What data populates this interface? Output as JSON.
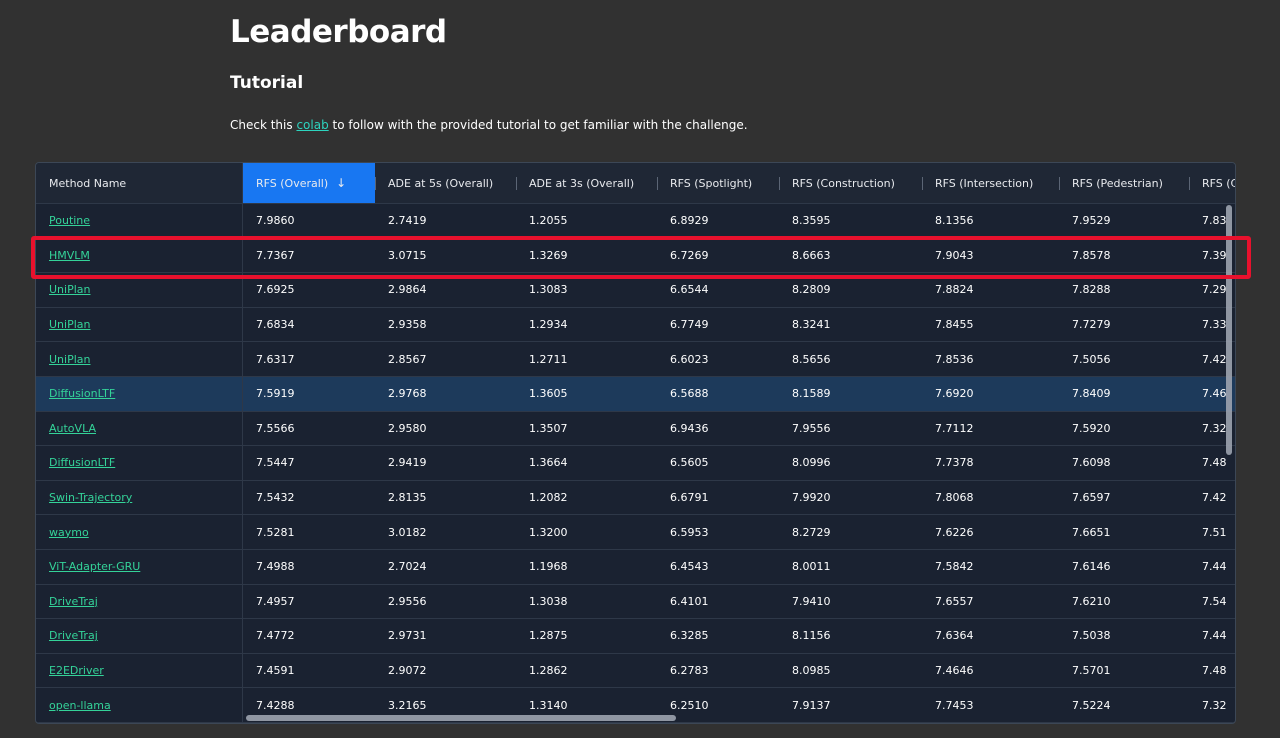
{
  "page": {
    "title": "Leaderboard",
    "subtitle": "Tutorial",
    "intro_before": "Check this ",
    "intro_link": "colab",
    "intro_after": " to follow with the provided tutorial to get familiar with the challenge."
  },
  "table": {
    "columns": [
      "Method Name",
      "RFS (Overall)",
      "ADE at 5s (Overall)",
      "ADE at 3s (Overall)",
      "RFS (Spotlight)",
      "RFS (Construction)",
      "RFS (Intersection)",
      "RFS (Pedestrian)",
      "RFS (C"
    ],
    "sort_indicator": "↓",
    "rows": [
      [
        "Poutine",
        "7.9860",
        "2.7419",
        "1.2055",
        "6.8929",
        "8.3595",
        "8.1356",
        "7.9529",
        "7.83"
      ],
      [
        "HMVLM",
        "7.7367",
        "3.0715",
        "1.3269",
        "6.7269",
        "8.6663",
        "7.9043",
        "7.8578",
        "7.39"
      ],
      [
        "UniPlan",
        "7.6925",
        "2.9864",
        "1.3083",
        "6.6544",
        "8.2809",
        "7.8824",
        "7.8288",
        "7.29"
      ],
      [
        "UniPlan",
        "7.6834",
        "2.9358",
        "1.2934",
        "6.7749",
        "8.3241",
        "7.8455",
        "7.7279",
        "7.33"
      ],
      [
        "UniPlan",
        "7.6317",
        "2.8567",
        "1.2711",
        "6.6023",
        "8.5656",
        "7.8536",
        "7.5056",
        "7.42"
      ],
      [
        "DiffusionLTF",
        "7.5919",
        "2.9768",
        "1.3605",
        "6.5688",
        "8.1589",
        "7.6920",
        "7.8409",
        "7.46"
      ],
      [
        "AutoVLA",
        "7.5566",
        "2.9580",
        "1.3507",
        "6.9436",
        "7.9556",
        "7.7112",
        "7.5920",
        "7.32"
      ],
      [
        "DiffusionLTF",
        "7.5447",
        "2.9419",
        "1.3664",
        "6.5605",
        "8.0996",
        "7.7378",
        "7.6098",
        "7.48"
      ],
      [
        "Swin-Trajectory",
        "7.5432",
        "2.8135",
        "1.2082",
        "6.6791",
        "7.9920",
        "7.8068",
        "7.6597",
        "7.42"
      ],
      [
        "waymo",
        "7.5281",
        "3.0182",
        "1.3200",
        "6.5953",
        "8.2729",
        "7.6226",
        "7.6651",
        "7.51"
      ],
      [
        "ViT-Adapter-GRU",
        "7.4988",
        "2.7024",
        "1.1968",
        "6.4543",
        "8.0011",
        "7.5842",
        "7.6146",
        "7.44"
      ],
      [
        "DriveTraj",
        "7.4957",
        "2.9556",
        "1.3038",
        "6.4101",
        "7.9410",
        "7.6557",
        "7.6210",
        "7.54"
      ],
      [
        "DriveTraj",
        "7.4772",
        "2.9731",
        "1.2875",
        "6.3285",
        "8.1156",
        "7.6364",
        "7.5038",
        "7.44"
      ],
      [
        "E2EDriver",
        "7.4591",
        "2.9072",
        "1.2862",
        "6.2783",
        "8.0985",
        "7.4646",
        "7.5701",
        "7.48"
      ],
      [
        "open-llama",
        "7.4288",
        "3.2165",
        "1.3140",
        "6.2510",
        "7.9137",
        "7.7453",
        "7.5224",
        "7.32"
      ]
    ],
    "selected_row": 5,
    "highlighted_row": 1
  },
  "colors": {
    "background": "#313131",
    "table_bg": "#1a2231",
    "selected_row": "#1d3a5b",
    "sorted_header": "#1877f2",
    "link": "#34d399",
    "highlight_box": "#e8112d"
  }
}
